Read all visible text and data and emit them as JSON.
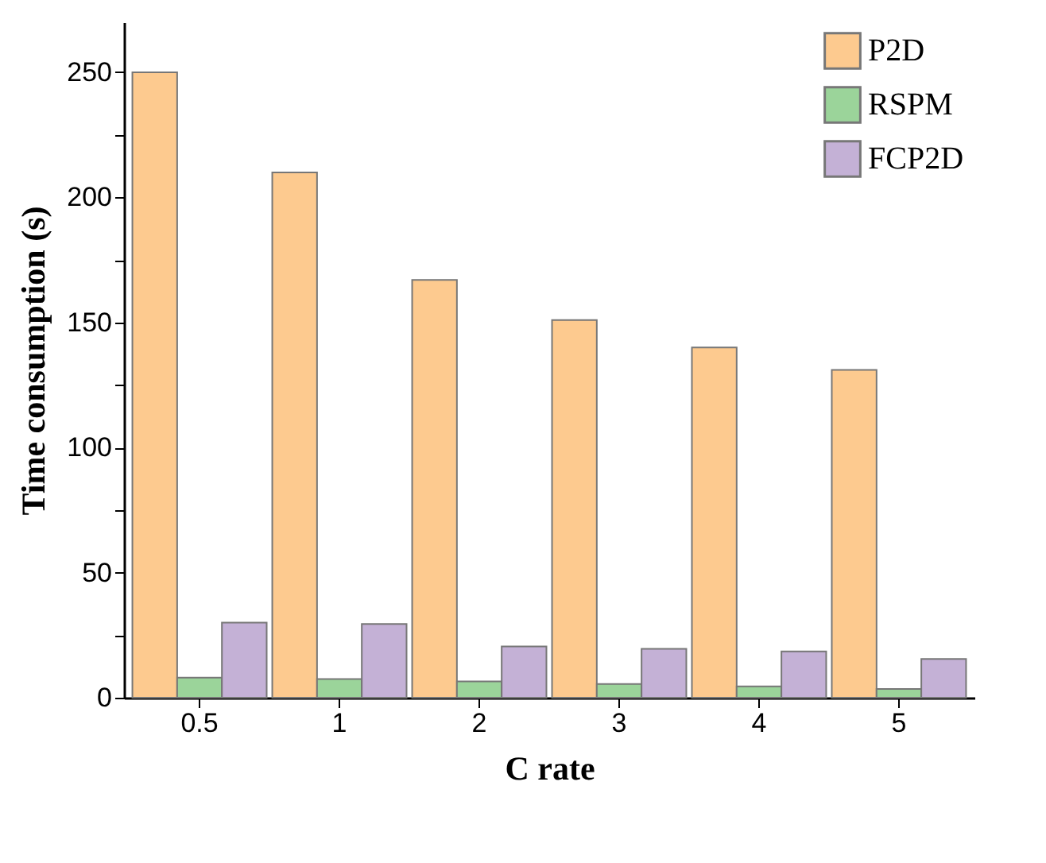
{
  "chart_data": {
    "type": "bar",
    "xlabel": "C rate",
    "ylabel": "Time consumption (s)",
    "categories": [
      "0.5",
      "1",
      "2",
      "3",
      "4",
      "5"
    ],
    "series": [
      {
        "name": "P2D",
        "color": "#fdca8f",
        "values": [
          250,
          210,
          167,
          151,
          140,
          131
        ]
      },
      {
        "name": "RSPM",
        "color": "#9bd49a",
        "values": [
          8,
          7.5,
          6.5,
          5.5,
          4.5,
          3.5
        ]
      },
      {
        "name": "FCP2D",
        "color": "#c4b1d6",
        "values": [
          30,
          29.5,
          20.5,
          19.5,
          18.5,
          15.5
        ]
      }
    ],
    "ylim": [
      0,
      270
    ],
    "yticks": [
      0,
      {
        "value": 25,
        "label": null
      },
      50,
      {
        "value": 75,
        "label": null
      },
      100,
      {
        "value": 125,
        "label": null
      },
      150,
      {
        "value": 175,
        "label": null
      },
      200,
      {
        "value": 225,
        "label": null
      },
      250
    ],
    "legend": "top right",
    "grid": false
  }
}
